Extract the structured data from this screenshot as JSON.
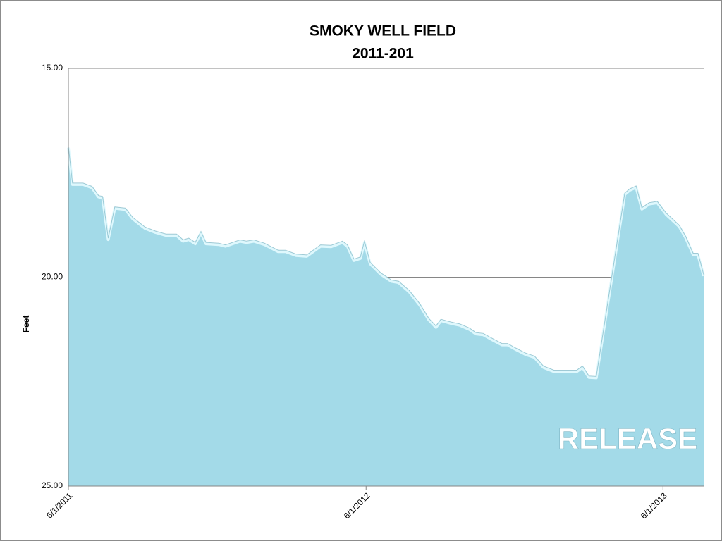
{
  "chart_data": {
    "type": "area",
    "title": "SMOKY WELL FIELD",
    "subtitle": "2011-201",
    "y_label": "Feet",
    "annotation": "RELEASE",
    "color": "#a3dae8",
    "y_inverted": true,
    "grid": true,
    "x": [
      "6/1/2011",
      "6/6/2011",
      "6/19/2011",
      "6/30/2011",
      "7/8/2011",
      "7/13/2011",
      "7/20/2011",
      "7/28/2011",
      "8/10/2011",
      "8/19/2011",
      "9/3/2011",
      "9/16/2011",
      "9/29/2011",
      "10/12/2011",
      "10/20/2011",
      "10/27/2011",
      "11/4/2011",
      "11/11/2011",
      "11/17/2011",
      "12/3/2011",
      "12/11/2011",
      "12/29/2011",
      "1/6/2012",
      "1/15/2012",
      "1/28/2012",
      "2/14/2012",
      "2/23/2012",
      "3/7/2012",
      "3/20/2012",
      "4/6/2012",
      "4/19/2012",
      "5/3/2012",
      "5/9/2012",
      "5/17/2012",
      "5/25/2012",
      "5/30/2012",
      "6/6/2012",
      "6/19/2012",
      "7/2/2012",
      "7/11/2012",
      "7/24/2012",
      "8/6/2012",
      "8/17/2012",
      "8/26/2012",
      "9/1/2012",
      "9/14/2012",
      "9/24/2012",
      "10/6/2012",
      "10/14/2012",
      "10/23/2012",
      "11/5/2012",
      "11/15/2012",
      "11/22/2012",
      "12/1/2012",
      "12/14/2012",
      "12/25/2012",
      "1/5/2013",
      "1/18/2013",
      "1/31/2013",
      "2/15/2013",
      "2/22/2013",
      "3/2/2013",
      "3/11/2013",
      "4/15/2013",
      "4/21/2013",
      "4/29/2013",
      "5/6/2013",
      "5/15/2013",
      "5/25/2013",
      "6/5/2013",
      "6/21/2013",
      "6/29/2013",
      "7/8/2013",
      "7/14/2013",
      "7/21/2013"
    ],
    "values": [
      16.9,
      17.78,
      17.78,
      17.86,
      18.08,
      18.1,
      19.1,
      18.35,
      18.38,
      18.6,
      18.83,
      18.93,
      19.0,
      19.0,
      19.14,
      19.1,
      19.2,
      18.94,
      19.2,
      19.22,
      19.26,
      19.14,
      19.17,
      19.14,
      19.22,
      19.39,
      19.39,
      19.48,
      19.5,
      19.26,
      19.27,
      19.17,
      19.26,
      19.6,
      19.55,
      19.17,
      19.68,
      19.93,
      20.1,
      20.13,
      20.35,
      20.67,
      21.02,
      21.2,
      21.04,
      21.11,
      21.15,
      21.25,
      21.36,
      21.38,
      21.52,
      21.62,
      21.62,
      21.72,
      21.85,
      21.92,
      22.16,
      22.26,
      22.26,
      22.26,
      22.16,
      22.4,
      22.41,
      18.02,
      17.92,
      17.85,
      18.37,
      18.25,
      18.22,
      18.5,
      18.79,
      19.06,
      19.46,
      19.46,
      19.97
    ],
    "xlim": [
      "6/1/2011",
      "7/21/2013"
    ],
    "xticks": [
      "6/1/2011",
      "6/1/2012",
      "6/1/2013"
    ],
    "ylim": [
      15,
      25
    ],
    "yticks": [
      {
        "value": 15,
        "label": "15.00"
      },
      {
        "value": 20,
        "label": "20.00"
      },
      {
        "value": 25,
        "label": "25.00"
      }
    ]
  }
}
